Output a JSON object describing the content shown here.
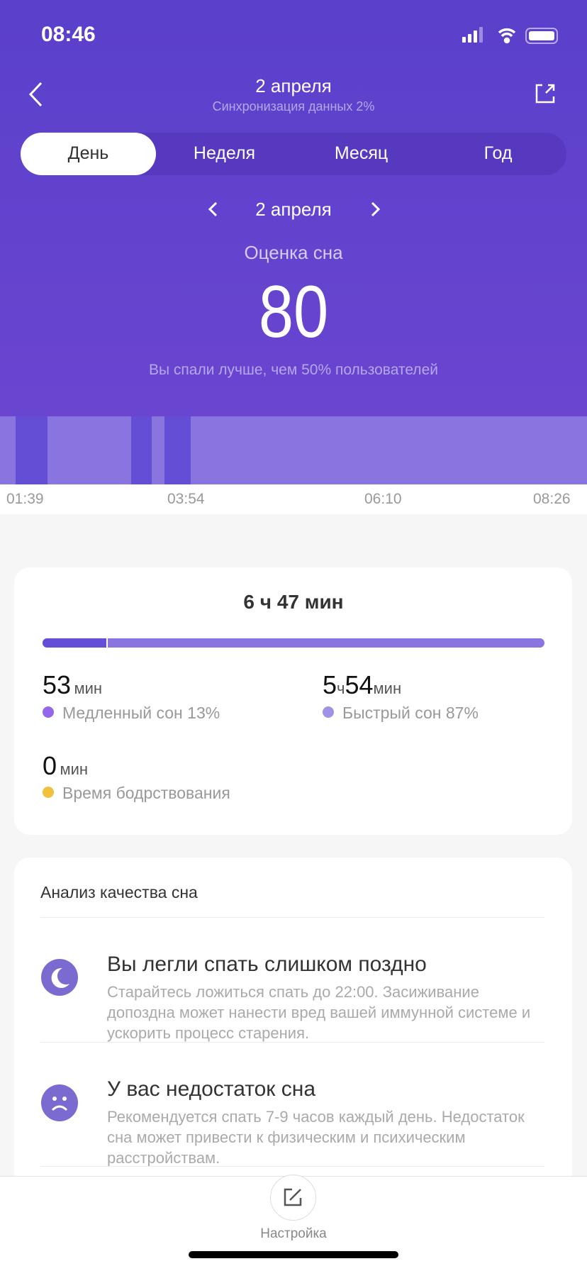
{
  "status": {
    "time": "08:46"
  },
  "header": {
    "title": "2 апреля",
    "subtitle": "Синхронизация данных 2%"
  },
  "tabs": [
    {
      "label": "День",
      "active": true
    },
    {
      "label": "Неделя"
    },
    {
      "label": "Месяц"
    },
    {
      "label": "Год"
    }
  ],
  "date_nav": {
    "label": "2 апреля"
  },
  "score": {
    "label": "Оценка сна",
    "value": "80",
    "comparison": "Вы спали лучше, чем 50% пользователей"
  },
  "chart_data": {
    "type": "timeline",
    "x_ticks": [
      "01:39",
      "03:54",
      "06:10",
      "08:26"
    ],
    "x_range": [
      "01:39",
      "08:26"
    ],
    "base_stage": "Быстрый сон",
    "deep_segments": [
      [
        "01:50",
        "02:12"
      ],
      [
        "03:10",
        "03:24"
      ],
      [
        "03:33",
        "03:51"
      ]
    ],
    "colors": {
      "light": "#8a74e0",
      "deep": "#654ed6"
    }
  },
  "summary": {
    "total": {
      "h": "6",
      "h_unit": "ч",
      "m": "47",
      "m_unit": "мин"
    },
    "progress": {
      "deep_fraction": 0.13,
      "light_fraction": 0.87
    },
    "deep": {
      "value": "53",
      "unit": "мин",
      "label": "Медленный сон 13%",
      "color": "#9466ee"
    },
    "light": {
      "h": "5",
      "h_unit": "ч",
      "m": "54",
      "m_unit": "мин",
      "label": "Быстрый сон 87%",
      "color": "#a292e6"
    },
    "awake": {
      "value": "0",
      "unit": "мин",
      "label": "Время бодрствования",
      "color": "#f2c040"
    }
  },
  "analysis": {
    "heading": "Анализ качества сна",
    "items": [
      {
        "icon": "moon-icon",
        "title": "Вы легли спать слишком поздно",
        "desc": "Старайтесь ложиться спать до 22:00. Засиживание допоздна может нанести вред вашей иммунной системе и ускорить процесс старения."
      },
      {
        "icon": "sad-face-icon",
        "title": "У вас недостаток сна",
        "desc": "Рекомендуется спать 7-9 часов каждый день. Недостаток сна может привести к физическим и психическим расстройствам."
      }
    ]
  },
  "bottom": {
    "settings_label": "Настройка"
  }
}
